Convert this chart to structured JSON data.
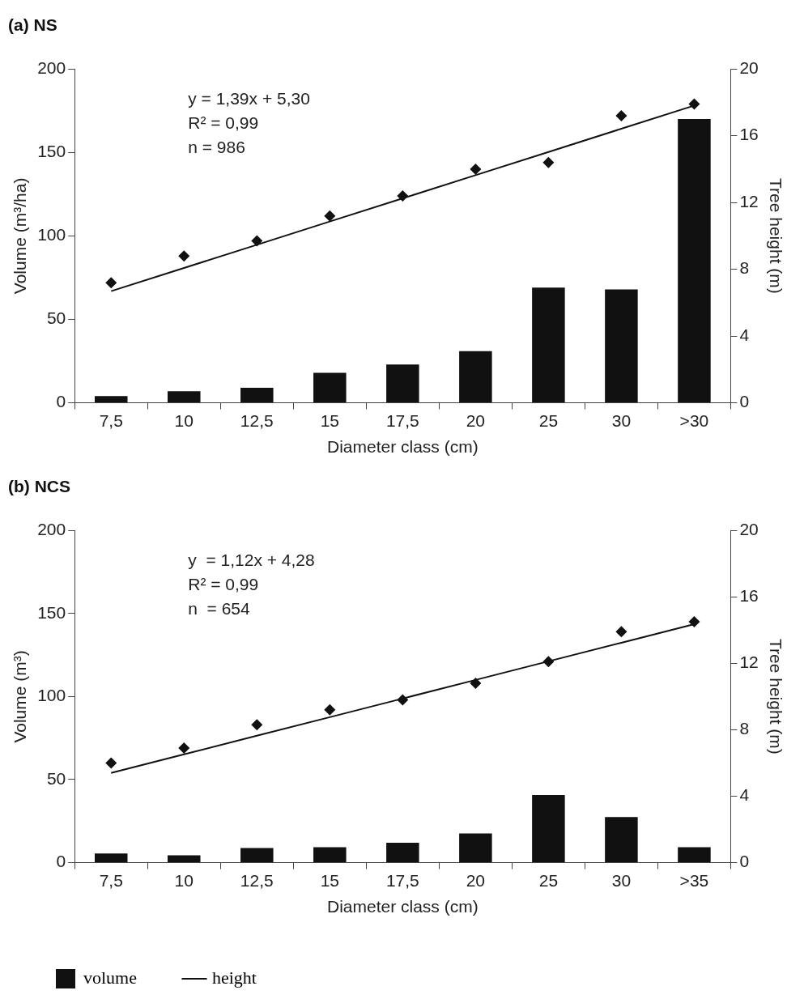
{
  "chart_data": [
    {
      "type": "bar",
      "title": "(a) NS",
      "xlabel": "Diameter class (cm)",
      "ylabel": "Volume (m³/ha)",
      "y2label": "Tree height (m)",
      "categories": [
        "7,5",
        "10",
        "12,5",
        "15",
        "17,5",
        "20",
        "25",
        "30",
        ">30"
      ],
      "ylim": [
        0,
        200
      ],
      "yticks": [
        0,
        50,
        100,
        150,
        200
      ],
      "y2lim": [
        0,
        20
      ],
      "y2ticks": [
        0,
        4,
        8,
        12,
        16,
        20
      ],
      "grid": false,
      "legend": false,
      "annotations": [
        "y = 1,39x + 5,30",
        "R² = 0,99",
        "n = 986"
      ],
      "series": [
        {
          "type": "bar",
          "color": "#111111",
          "values": [
            4,
            7,
            9,
            18,
            23,
            31,
            69,
            68,
            170
          ]
        },
        {
          "type": "scatter",
          "axis": "y2",
          "marker": "diamond",
          "color": "#111111",
          "values": [
            7.2,
            8.8,
            9.7,
            11.2,
            12.4,
            14.0,
            14.4,
            17.2,
            17.9
          ]
        },
        {
          "type": "line",
          "axis": "y2",
          "marker": "none",
          "color": "#111111",
          "values": [
            6.69,
            8.08,
            9.47,
            10.86,
            12.25,
            13.64,
            15.03,
            16.42,
            17.81
          ]
        }
      ]
    },
    {
      "type": "bar",
      "title": "(b) NCS",
      "xlabel": "Diameter class (cm)",
      "ylabel": "Volume (m³)",
      "y2label": "Tree height (m)",
      "categories": [
        "7,5",
        "10",
        "12,5",
        "15",
        "17,5",
        "20",
        "25",
        "30",
        ">35"
      ],
      "ylim": [
        0,
        200
      ],
      "yticks": [
        0,
        50,
        100,
        150,
        200
      ],
      "y2lim": [
        0,
        20
      ],
      "y2ticks": [
        0,
        4,
        8,
        12,
        16,
        20
      ],
      "grid": false,
      "legend": "bottom",
      "annotations": [
        "y  = 1,12x + 4,28",
        "R² = 0,99",
        "n  = 654"
      ],
      "series": [
        {
          "type": "bar",
          "name": "volume",
          "color": "#111111",
          "values": [
            5.5,
            4.4,
            8.8,
            9.3,
            12,
            17.6,
            40.7,
            27.5,
            9.3
          ]
        },
        {
          "type": "scatter",
          "axis": "y2",
          "marker": "diamond",
          "color": "#111111",
          "values": [
            6.0,
            6.9,
            8.3,
            9.2,
            9.8,
            10.8,
            12.1,
            13.9,
            14.5
          ]
        },
        {
          "type": "line",
          "name": "height",
          "axis": "y2",
          "marker": "none",
          "color": "#111111",
          "values": [
            5.4,
            6.52,
            7.64,
            8.76,
            9.88,
            11.0,
            12.12,
            13.24,
            14.36
          ]
        }
      ]
    }
  ]
}
